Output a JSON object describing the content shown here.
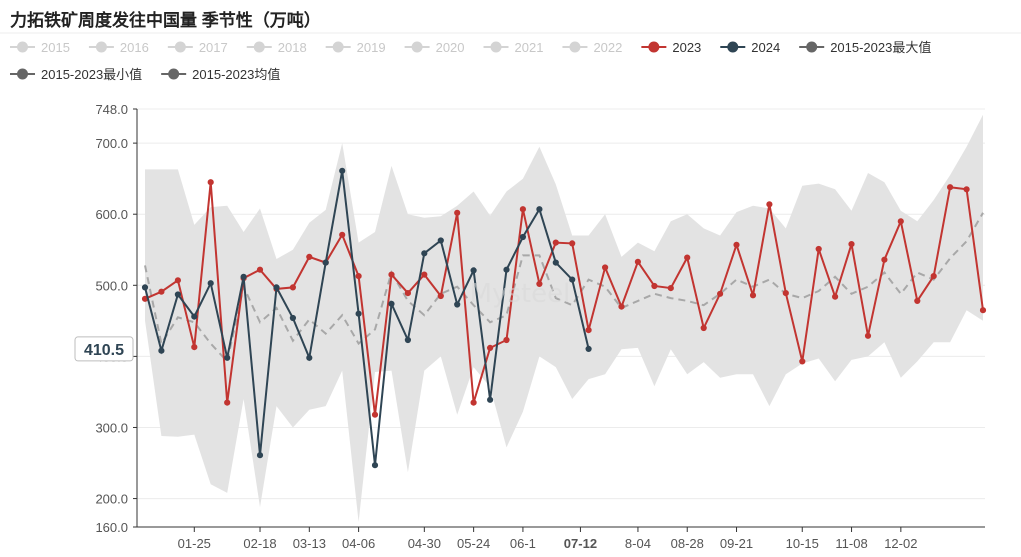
{
  "title": "力拓铁矿周度发往中国量 季节性（万吨）",
  "chart_data": {
    "type": "line",
    "title": "力拓铁矿周度发往中国量 季节性（万吨）",
    "ylim": [
      160,
      748
    ],
    "yticks": [
      160,
      200,
      300,
      400,
      500,
      600,
      700,
      748
    ],
    "ytick_labels": [
      "160.0",
      "200.0",
      "300.0",
      "400.0",
      "500.0",
      "600.0",
      "700.0",
      "748.0"
    ],
    "x_range": [
      1,
      52
    ],
    "xticks": [
      {
        "week": 4,
        "label": "01-25"
      },
      {
        "week": 8,
        "label": "02-18"
      },
      {
        "week": 11,
        "label": "03-13"
      },
      {
        "week": 14,
        "label": "04-06"
      },
      {
        "week": 18,
        "label": "04-30"
      },
      {
        "week": 21,
        "label": "05-24"
      },
      {
        "week": 24,
        "label": "06-1"
      },
      {
        "week": 27.5,
        "label": "07-12"
      },
      {
        "week": 31,
        "label": "8-04"
      },
      {
        "week": 34,
        "label": "08-28"
      },
      {
        "week": 37,
        "label": "09-21"
      },
      {
        "week": 41,
        "label": "10-15"
      },
      {
        "week": 44,
        "label": "11-08"
      },
      {
        "week": 47,
        "label": "12-02"
      }
    ],
    "crosshair": {
      "label": "410.5",
      "value": 410.5,
      "x_label": "07-12"
    },
    "legend": [
      {
        "name": "2015",
        "color": "#d4d4d4",
        "active": false
      },
      {
        "name": "2016",
        "color": "#d4d4d4",
        "active": false
      },
      {
        "name": "2017",
        "color": "#d4d4d4",
        "active": false
      },
      {
        "name": "2018",
        "color": "#d4d4d4",
        "active": false
      },
      {
        "name": "2019",
        "color": "#d4d4d4",
        "active": false
      },
      {
        "name": "2020",
        "color": "#d4d4d4",
        "active": false
      },
      {
        "name": "2021",
        "color": "#d4d4d4",
        "active": false
      },
      {
        "name": "2022",
        "color": "#d4d4d4",
        "active": false
      },
      {
        "name": "2023",
        "color": "#c23531",
        "active": true
      },
      {
        "name": "2024",
        "color": "#2f4554",
        "active": true
      },
      {
        "name": "2015-2023最大值",
        "color": "#666666",
        "active": true
      },
      {
        "name": "2015-2023最小值",
        "color": "#666666",
        "active": true
      },
      {
        "name": "2015-2023均值",
        "color": "#666666",
        "active": true
      }
    ],
    "range_band": {
      "name": "2015-2023最大值 / 2015-2023最小值",
      "color": "#e3e3e3",
      "max": [
        663,
        663,
        663,
        585,
        610,
        612,
        575,
        608,
        537,
        550,
        588,
        606,
        700,
        560,
        575,
        668,
        600,
        595,
        597,
        612,
        632,
        598,
        632,
        650,
        695,
        642,
        570,
        570,
        600,
        540,
        560,
        548,
        590,
        600,
        580,
        570,
        603,
        612,
        608,
        580,
        640,
        643,
        635,
        605,
        658,
        645,
        605,
        590,
        620,
        655,
        695,
        740
      ],
      "min": [
        450,
        288,
        287,
        290,
        220,
        208,
        340,
        188,
        330,
        300,
        325,
        330,
        380,
        167,
        378,
        380,
        237,
        380,
        400,
        318,
        385,
        357,
        272,
        322,
        400,
        385,
        340,
        368,
        375,
        410,
        412,
        358,
        410,
        375,
        392,
        370,
        375,
        375,
        330,
        375,
        390,
        397,
        365,
        395,
        400,
        420,
        370,
        393,
        420,
        420,
        465,
        450
      ]
    },
    "mean": {
      "name": "2015-2023均值",
      "color": "#a8a8a8",
      "values": [
        528,
        418,
        455,
        448,
        418,
        393,
        498,
        448,
        468,
        422,
        452,
        432,
        458,
        418,
        438,
        518,
        478,
        458,
        488,
        498,
        472,
        448,
        458,
        542,
        542,
        482,
        472,
        508,
        498,
        468,
        478,
        488,
        482,
        478,
        472,
        488,
        508,
        498,
        508,
        488,
        482,
        492,
        512,
        488,
        498,
        518,
        488,
        518,
        508,
        538,
        562,
        602
      ]
    },
    "series": [
      {
        "name": "2023",
        "color": "#c23531",
        "values": [
          481,
          491,
          507,
          413,
          645,
          335,
          510,
          522,
          495,
          497,
          540,
          532,
          571,
          513,
          318,
          515,
          489,
          515,
          485,
          602,
          335,
          412,
          423,
          607,
          502,
          560,
          559,
          437,
          525,
          470,
          533,
          499,
          496,
          539,
          440,
          488,
          557,
          486,
          614,
          489,
          393,
          551,
          484,
          558,
          429,
          536,
          590,
          478,
          513,
          638,
          635,
          465
        ]
      },
      {
        "name": "2024",
        "color": "#2f4554",
        "values": [
          497,
          408,
          487,
          456,
          503,
          398,
          512,
          261,
          497,
          454,
          398,
          532,
          661,
          460,
          247,
          474,
          423,
          545,
          563,
          473,
          521,
          339,
          522,
          568,
          607,
          532,
          508,
          410.5
        ]
      }
    ]
  }
}
